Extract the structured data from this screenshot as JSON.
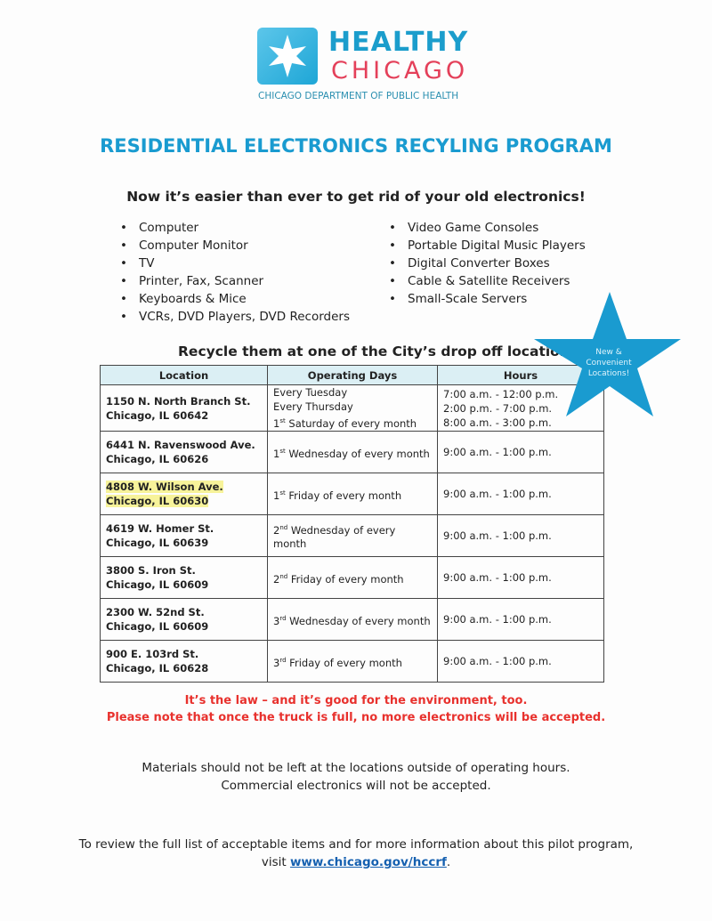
{
  "logo": {
    "line1": "HEALTHY",
    "line2": "CHICAGO",
    "dept": "CHICAGO DEPARTMENT OF PUBLIC HEALTH"
  },
  "title": "RESIDENTIAL ELECTRONICS RECYLING PROGRAM",
  "subtitle": "Now it’s easier than ever to get rid of your old electronics!",
  "items_left": [
    "Computer",
    "Computer Monitor",
    "TV",
    "Printer, Fax, Scanner",
    "Keyboards & Mice",
    "VCRs, DVD Players, DVD Recorders"
  ],
  "items_right": [
    "Video Game Consoles",
    "Portable Digital Music Players",
    "Digital Converter Boxes",
    "Cable & Satellite Receivers",
    "Small-Scale Servers"
  ],
  "recycle_heading": "Recycle them at one of the City’s drop off locations:",
  "star": {
    "text": [
      "New &",
      "Convenient",
      "Locations!"
    ],
    "color": "#1a9bd0"
  },
  "table": {
    "headers": [
      "Location",
      "Operating Days",
      "Hours"
    ],
    "rows": [
      {
        "loc": [
          "1150 N. North Branch St.",
          "Chicago, IL 60642"
        ],
        "days": [
          "Every Tuesday",
          "Every Thursday",
          "1st Saturday of every month"
        ],
        "hours": [
          "7:00 a.m. - 12:00 p.m.",
          "2:00 p.m. - 7:00 p.m.",
          "8:00 a.m. - 3:00 p.m."
        ]
      },
      {
        "loc": [
          "6441 N. Ravenswood Ave.",
          "Chicago, IL 60626"
        ],
        "days": [
          "1st Wednesday of every month"
        ],
        "hours": [
          "9:00 a.m. - 1:00 p.m."
        ]
      },
      {
        "loc": [
          "4808 W. Wilson Ave.",
          "Chicago, IL 60630"
        ],
        "days": [
          "1st Friday of every month"
        ],
        "hours": [
          "9:00 a.m. - 1:00 p.m."
        ],
        "highlight": true
      },
      {
        "loc": [
          "4619 W. Homer St.",
          "Chicago, IL 60639"
        ],
        "days": [
          "2nd Wednesday of every month"
        ],
        "hours": [
          "9:00 a.m. - 1:00 p.m."
        ]
      },
      {
        "loc": [
          "3800 S. Iron St.",
          "Chicago, IL 60609"
        ],
        "days": [
          "2nd Friday of every month"
        ],
        "hours": [
          "9:00 a.m. - 1:00 p.m."
        ]
      },
      {
        "loc": [
          "2300 W. 52nd St.",
          "Chicago, IL 60609"
        ],
        "days": [
          "3rd Wednesday of every month"
        ],
        "hours": [
          "9:00 a.m. - 1:00 p.m."
        ]
      },
      {
        "loc": [
          "900 E. 103rd St.",
          "Chicago, IL 60628"
        ],
        "days": [
          "3rd Friday of every month"
        ],
        "hours": [
          "9:00 a.m. - 1:00 p.m."
        ]
      }
    ]
  },
  "law1": "It’s the law – and it’s good for the environment, too.",
  "law2": "Please note that once the truck is full, no more electronics will be accepted.",
  "note1": "Materials should not be left at the locations outside of operating hours.",
  "note2": "Commercial electronics will not be accepted.",
  "footer1": "To review the full list of acceptable items and for more information about this pilot program,",
  "footer_visit": "visit ",
  "footer_link": "www.chicago.gov/hccrf",
  "footer_end": "."
}
